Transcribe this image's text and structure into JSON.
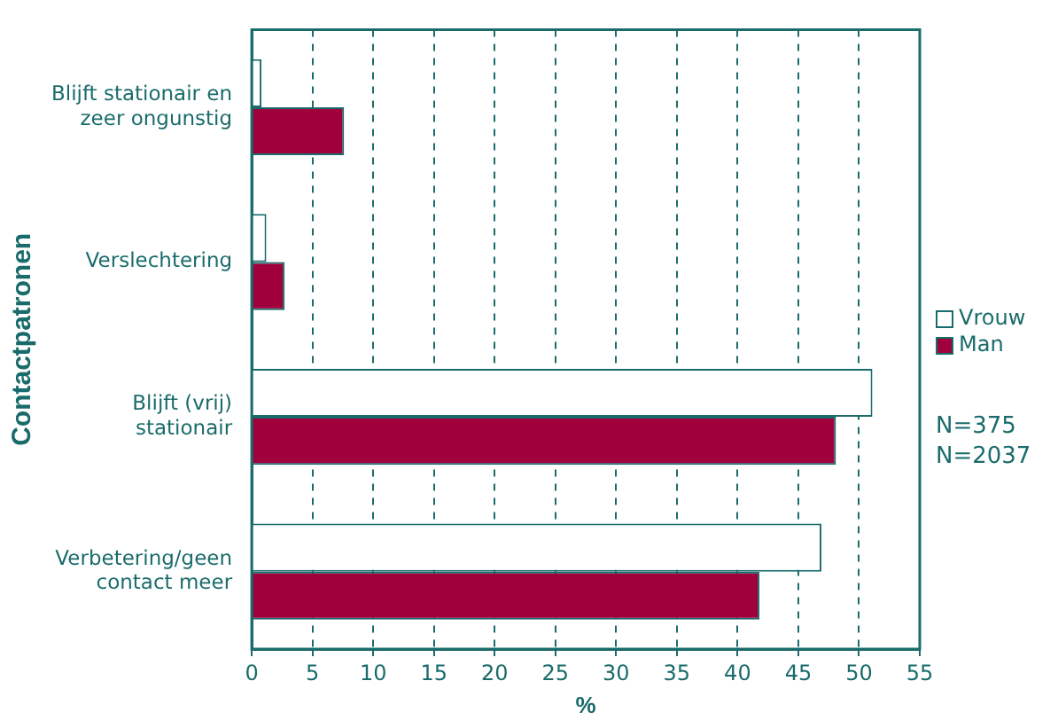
{
  "chart_data": {
    "type": "bar",
    "orientation": "horizontal",
    "ylabel": "Contactpatronen",
    "xlabel": "%",
    "categories": [
      "Blijft stationair en zeer ongunstig",
      "Verslechtering",
      "Blijft (vrij) stationair",
      "Verbetering/geen contact meer"
    ],
    "series": [
      {
        "name": "Vrouw",
        "color": "#ffffff",
        "values": [
          0.8,
          1.2,
          51.1,
          46.9
        ]
      },
      {
        "name": "Man",
        "color": "#a0003c",
        "values": [
          7.6,
          2.7,
          48.1,
          41.8
        ]
      }
    ],
    "xlim": [
      0,
      55
    ],
    "xticks": [
      0,
      5,
      10,
      15,
      20,
      25,
      30,
      35,
      40,
      45,
      50,
      55
    ],
    "grid": "x",
    "legend": "right",
    "annotations": [
      "N=375",
      "N=2037"
    ]
  }
}
